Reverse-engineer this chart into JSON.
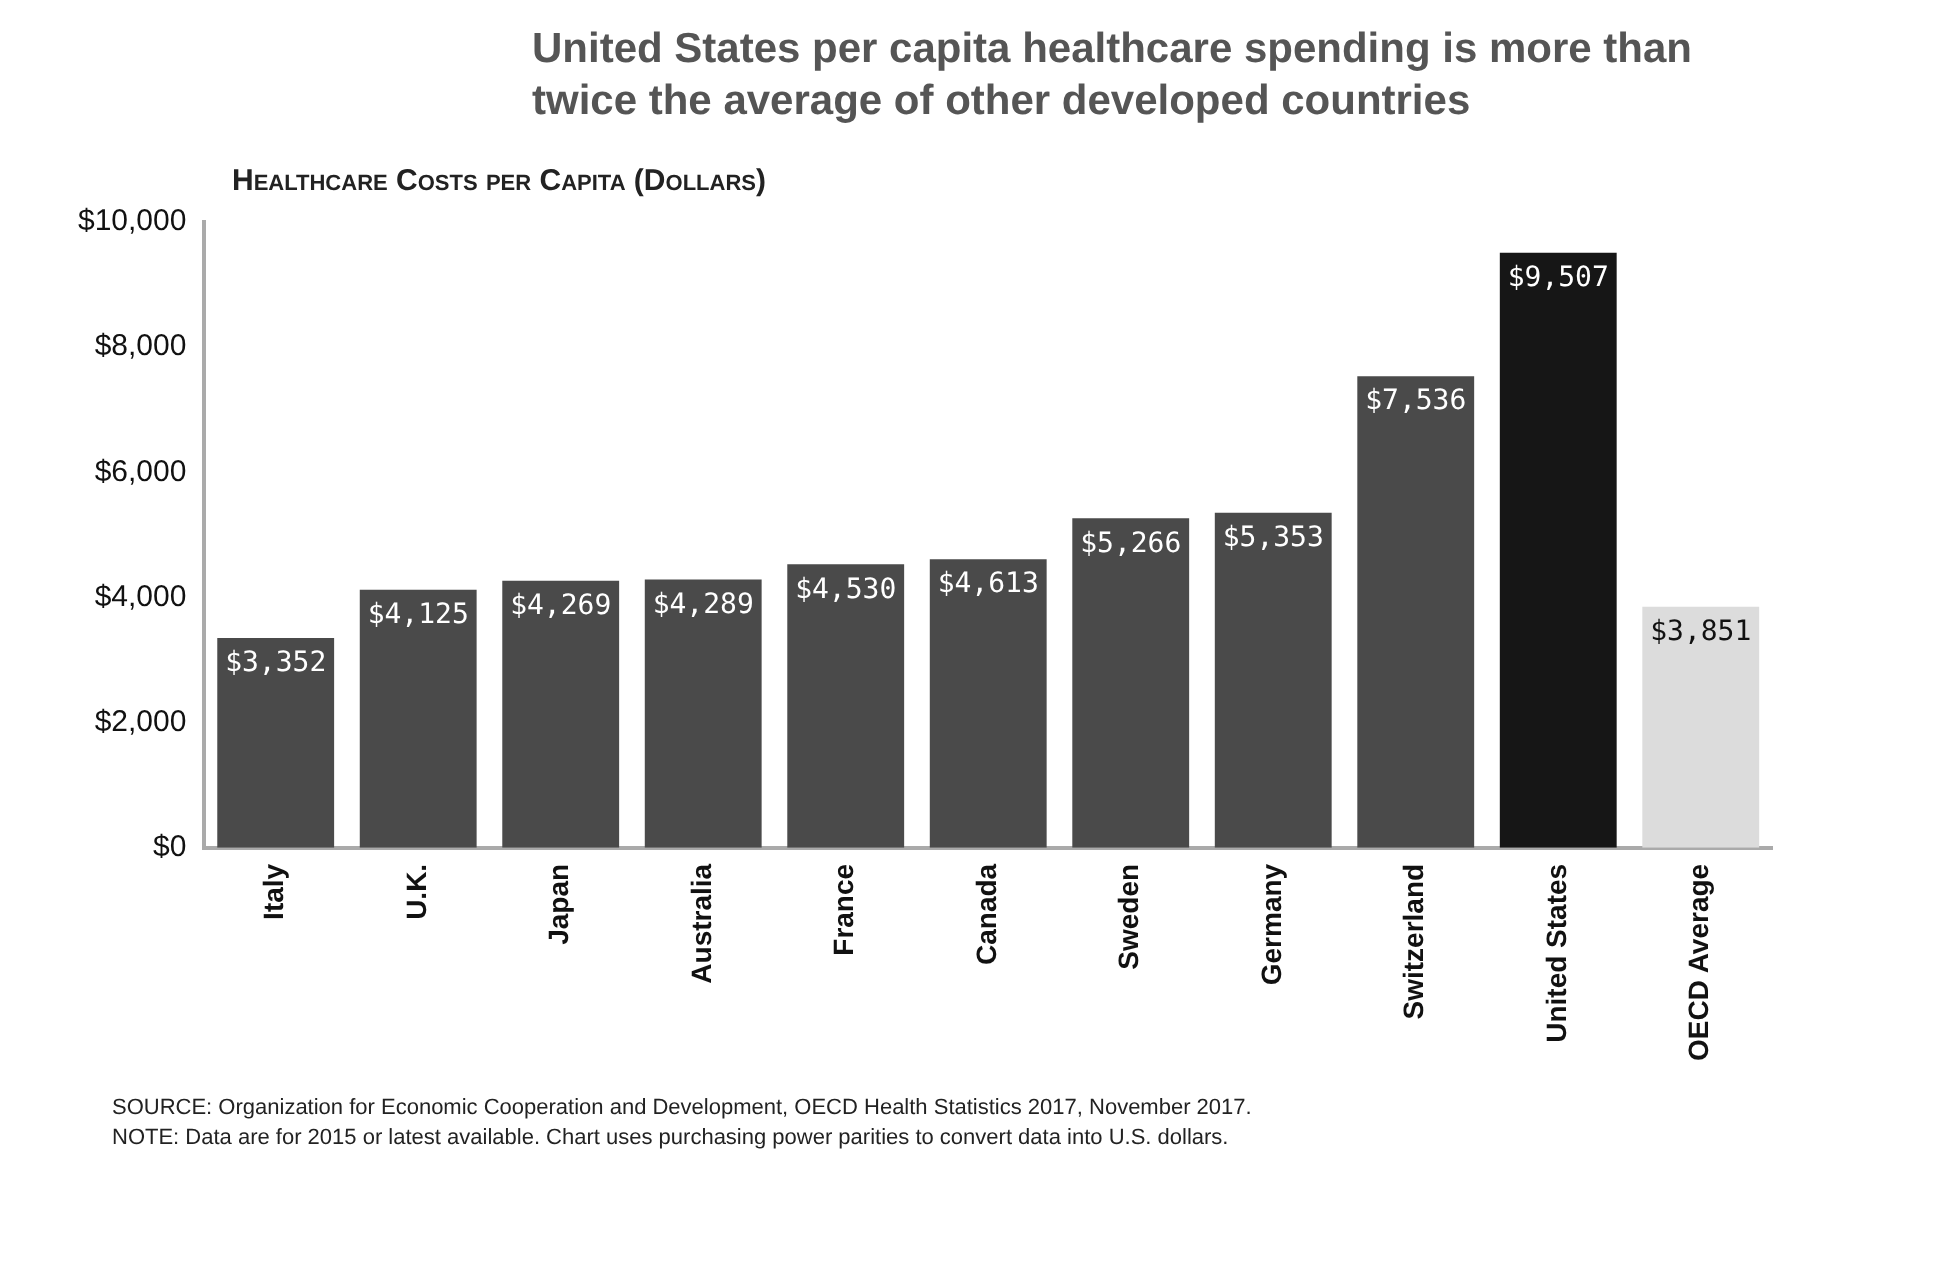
{
  "chart_data": {
    "type": "bar",
    "title": "United States per capita healthcare spending is more than twice the average of other developed countries",
    "subtitle": "Healthcare Costs per Capita (Dollars)",
    "categories": [
      "Italy",
      "U.K.",
      "Japan",
      "Australia",
      "France",
      "Canada",
      "Sweden",
      "Germany",
      "Switzerland",
      "United States",
      "OECD Average"
    ],
    "values": [
      3352,
      4125,
      4269,
      4289,
      4530,
      4613,
      5266,
      5353,
      7536,
      9507,
      3851
    ],
    "value_labels": [
      "$3,352",
      "$4,125",
      "$4,269",
      "$4,289",
      "$4,530",
      "$4,613",
      "$5,266",
      "$5,353",
      "$7,536",
      "$9,507",
      "$3,851"
    ],
    "colors": [
      "#4a4a4a",
      "#4a4a4a",
      "#4a4a4a",
      "#4a4a4a",
      "#4a4a4a",
      "#4a4a4a",
      "#4a4a4a",
      "#4a4a4a",
      "#4a4a4a",
      "#161616",
      "#dcdcdc"
    ],
    "ylim": [
      0,
      10000
    ],
    "yticks": [
      {
        "value": 0,
        "label": "$0"
      },
      {
        "value": 2000,
        "label": "$2,000"
      },
      {
        "value": 4000,
        "label": "$4,000"
      },
      {
        "value": 6000,
        "label": "$6,000"
      },
      {
        "value": 8000,
        "label": "$8,000"
      },
      {
        "value": 10000,
        "label": "$10,000"
      }
    ],
    "grid": false,
    "legend": false,
    "annotations": [
      "SOURCE: Organization for Economic Cooperation and Development, OECD Health Statistics 2017, November 2017.",
      "NOTE: Data are for 2015 or latest available. Chart uses purchasing power parities to convert data into U.S. dollars."
    ]
  }
}
